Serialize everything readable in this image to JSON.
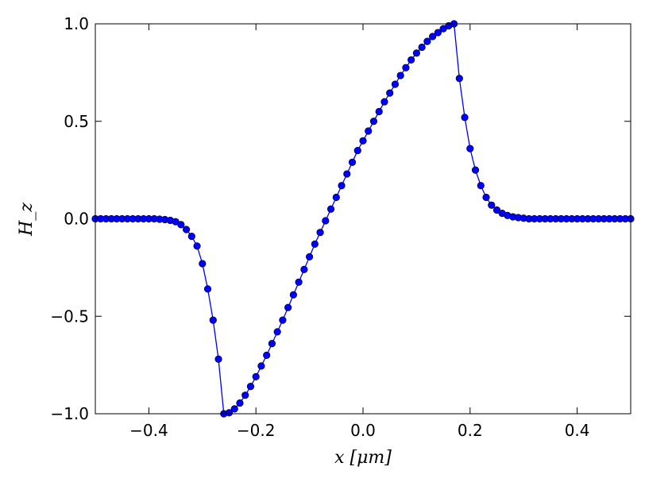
{
  "chart_data": {
    "type": "line",
    "xlabel": "x [μm]",
    "ylabel": "H_z",
    "xlim": [
      -0.5,
      0.5
    ],
    "ylim": [
      -1.0,
      1.0
    ],
    "xticks": [
      -0.4,
      -0.2,
      0.0,
      0.2,
      0.4
    ],
    "xtick_labels": [
      "−0.4",
      "−0.2",
      "0.0",
      "0.2",
      "0.4"
    ],
    "yticks": [
      -1.0,
      -0.5,
      0.0,
      0.5,
      1.0
    ],
    "ytick_labels": [
      "−1.0",
      "−0.5",
      "0.0",
      "0.5",
      "1.0"
    ],
    "grid": false,
    "marker": "circle",
    "series_color": "#0000ff",
    "series": [
      {
        "x": [
          -0.5,
          -0.49,
          -0.48,
          -0.47,
          -0.46,
          -0.45,
          -0.44,
          -0.43,
          -0.42,
          -0.41,
          -0.4,
          -0.39,
          -0.38,
          -0.37,
          -0.36,
          -0.35,
          -0.34,
          -0.33,
          -0.32,
          -0.31,
          -0.3,
          -0.29,
          -0.28,
          -0.27,
          -0.26,
          -0.25,
          -0.24,
          -0.23,
          -0.22,
          -0.21,
          -0.2,
          -0.19,
          -0.18,
          -0.17,
          -0.16,
          -0.15,
          -0.14,
          -0.13,
          -0.12,
          -0.11,
          -0.1,
          -0.09,
          -0.08,
          -0.07,
          -0.06,
          -0.05,
          -0.04,
          -0.03,
          -0.02,
          -0.01,
          0.0,
          0.01,
          0.02,
          0.03,
          0.04,
          0.05,
          0.06,
          0.07,
          0.08,
          0.09,
          0.1,
          0.11,
          0.12,
          0.13,
          0.14,
          0.15,
          0.16,
          0.17,
          0.18,
          0.19,
          0.2,
          0.21,
          0.22,
          0.23,
          0.24,
          0.25,
          0.26,
          0.27,
          0.28,
          0.29,
          0.3,
          0.31,
          0.32,
          0.33,
          0.34,
          0.35,
          0.36,
          0.37,
          0.38,
          0.39,
          0.4,
          0.41,
          0.42,
          0.43,
          0.44,
          0.45,
          0.46,
          0.47,
          0.48,
          0.49,
          0.5
        ],
        "y": [
          0.0,
          0.0,
          0.0,
          0.0,
          0.0,
          0.0,
          0.0,
          0.0,
          0.0,
          0.0,
          0.0,
          0.0,
          -0.002,
          -0.004,
          -0.008,
          -0.015,
          -0.03,
          -0.055,
          -0.09,
          -0.14,
          -0.23,
          -0.36,
          -0.52,
          -0.72,
          -1.0,
          -0.995,
          -0.975,
          -0.945,
          -0.905,
          -0.86,
          -0.81,
          -0.755,
          -0.7,
          -0.64,
          -0.58,
          -0.52,
          -0.455,
          -0.39,
          -0.325,
          -0.26,
          -0.195,
          -0.13,
          -0.07,
          -0.01,
          0.05,
          0.11,
          0.17,
          0.23,
          0.29,
          0.35,
          0.4,
          0.45,
          0.5,
          0.55,
          0.6,
          0.645,
          0.69,
          0.735,
          0.775,
          0.815,
          0.85,
          0.88,
          0.91,
          0.935,
          0.955,
          0.975,
          0.99,
          1.0,
          0.72,
          0.52,
          0.36,
          0.25,
          0.17,
          0.11,
          0.07,
          0.045,
          0.028,
          0.017,
          0.01,
          0.006,
          0.003,
          0.0,
          0.0,
          0.0,
          0.0,
          0.0,
          0.0,
          0.0,
          0.0,
          0.0,
          0.0,
          0.0,
          0.0,
          0.0,
          0.0,
          0.0,
          0.0,
          0.0,
          0.0,
          0.0,
          0.0
        ]
      }
    ]
  }
}
